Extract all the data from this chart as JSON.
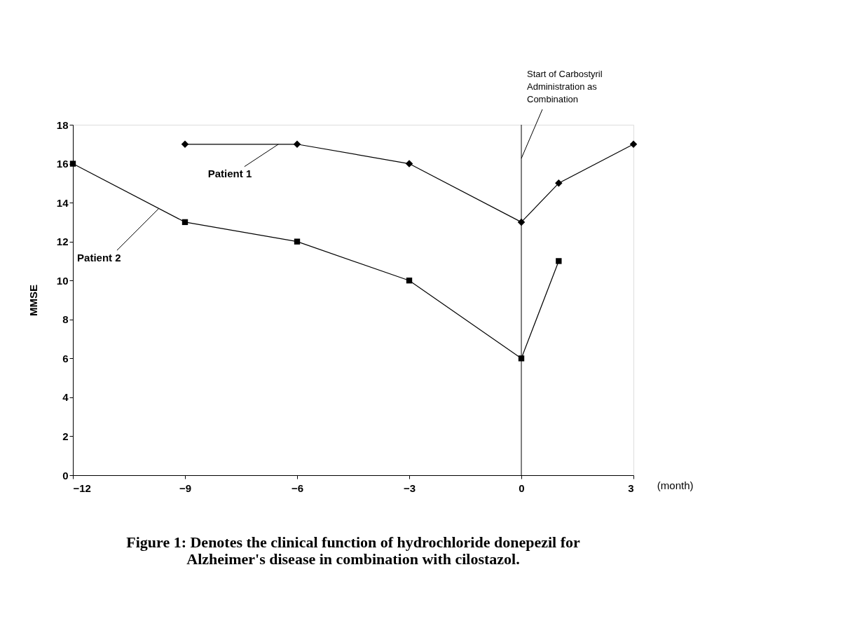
{
  "chart_data": {
    "type": "line",
    "title": "Figure 1: Denotes the clinical function of hydrochloride donepezil for Alzheimer's disease in combination with cilostazol.",
    "xlabel": "(month)",
    "ylabel": "MMSE",
    "series": [
      {
        "x": [
          -9,
          -6,
          -3,
          0,
          1,
          3
        ],
        "values": [
          17,
          17,
          16,
          13,
          15,
          17
        ],
        "color": "#000000",
        "marker": "diamond"
      },
      {
        "x": [
          -12,
          -9,
          -6,
          -3,
          0,
          1
        ],
        "values": [
          16,
          13,
          12,
          10,
          6,
          11
        ],
        "color": "#000000",
        "marker": "square"
      }
    ],
    "xlim": [
      -12,
      3
    ],
    "xticks": [
      -12,
      -9,
      -6,
      -3,
      0,
      3
    ],
    "ylim": [
      0,
      18
    ],
    "yticks": [
      0,
      2,
      4,
      6,
      8,
      10,
      12,
      14,
      16,
      18
    ],
    "ref_lines": [
      {
        "axis": "x",
        "value": 0,
        "label": "Start of Carbostyril Administration as Combination"
      }
    ],
    "annotations": [
      {
        "text": "Patient 1",
        "x": -6.5,
        "y": 17
      },
      {
        "text": "Patient 2",
        "x": -9.7,
        "y": 13.7
      }
    ],
    "grid": false,
    "legend": false,
    "line_style": "solid"
  }
}
